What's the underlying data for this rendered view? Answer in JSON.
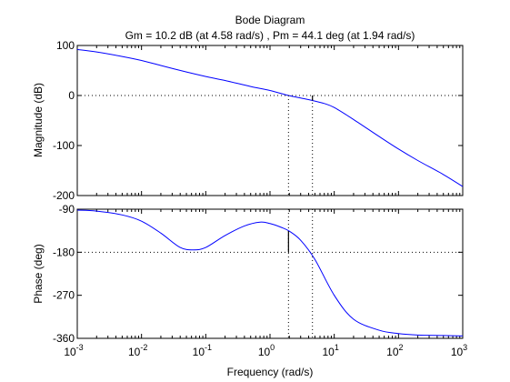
{
  "chart_data": [
    {
      "type": "line",
      "title": "Bode Diagram",
      "subtitle": "Gm = 10.2 dB (at 4.58 rad/s) ,  Pm = 44.1 deg (at 1.94 rad/s)",
      "ylabel": "Magnitude (dB)",
      "xscale": "log",
      "xlim": [
        0.001,
        1000
      ],
      "ylim": [
        -200,
        100
      ],
      "yticks": [
        100,
        0,
        -100,
        -200
      ],
      "ytick_labels": [
        "100",
        "0",
        "-100",
        "-200"
      ],
      "grid": false,
      "line_color": "#0000ff",
      "reference_line": 0,
      "series": [
        {
          "x": [
            0.001,
            0.002,
            0.005,
            0.01,
            0.02,
            0.05,
            0.1,
            0.2,
            0.5,
            1,
            1.94,
            3,
            4.58,
            7,
            10,
            20,
            50,
            100,
            200,
            500,
            1000
          ],
          "values": [
            92,
            87,
            78,
            70,
            60,
            47,
            38,
            30,
            18,
            10,
            0,
            -5,
            -10,
            -16,
            -24,
            -48,
            -82,
            -107,
            -130,
            -158,
            -182
          ]
        }
      ],
      "markers": [
        {
          "x": 1.94,
          "from": 0,
          "to": -200
        },
        {
          "x": 4.58,
          "from": 0,
          "to": -10
        }
      ]
    },
    {
      "type": "line",
      "xlabel": "Frequency  (rad/s)",
      "ylabel": "Phase (deg)",
      "xscale": "log",
      "xlim": [
        0.001,
        1000
      ],
      "ylim": [
        -360,
        -90
      ],
      "yticks": [
        -90,
        -180,
        -270,
        -360
      ],
      "ytick_labels": [
        "-90",
        "-180",
        "-270",
        "-360"
      ],
      "xtick_exponents": [
        "-3",
        "-2",
        "-1",
        "0",
        "1",
        "2",
        "3"
      ],
      "xtick_base": "10",
      "grid": false,
      "line_color": "#0000ff",
      "reference_line": -180,
      "series": [
        {
          "x": [
            0.001,
            0.002,
            0.005,
            0.01,
            0.02,
            0.04,
            0.065,
            0.1,
            0.2,
            0.4,
            0.7,
            1,
            1.5,
            2,
            3,
            5,
            10,
            20,
            50,
            100,
            200,
            500,
            1000
          ],
          "values": [
            -92,
            -94,
            -102,
            -115,
            -140,
            -170,
            -175,
            -170,
            -145,
            -125,
            -117,
            -120,
            -128,
            -136,
            -155,
            -195,
            -270,
            -320,
            -343,
            -350,
            -353,
            -354,
            -355
          ]
        }
      ],
      "markers": [
        {
          "x": 1.94,
          "from": -136,
          "to": -180
        },
        {
          "x": 4.58,
          "from": -90,
          "to": -180
        }
      ]
    }
  ]
}
